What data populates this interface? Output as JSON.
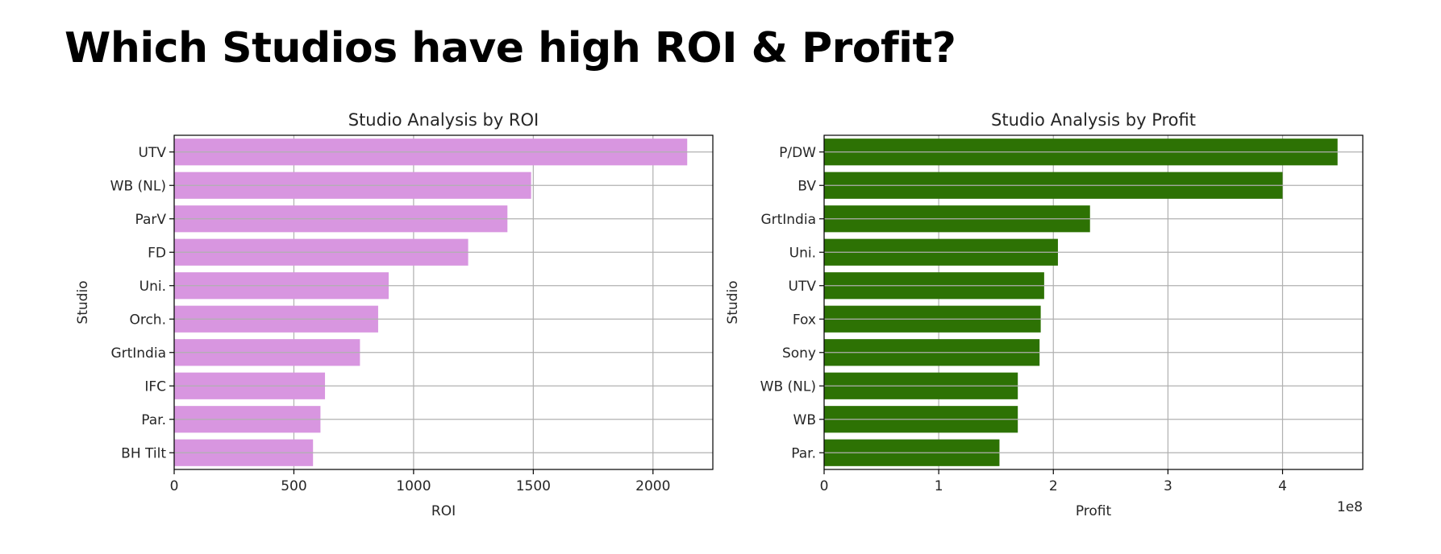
{
  "page": {
    "title": "Which Studios have high ROI & Profit?"
  },
  "chart_data": [
    {
      "type": "bar",
      "orientation": "horizontal",
      "title": "Studio Analysis by ROI",
      "xlabel": "ROI",
      "ylabel": "Studio",
      "categories": [
        "UTV",
        "WB (NL)",
        "ParV",
        "FD",
        "Uni.",
        "Orch.",
        "GrtIndia",
        "IFC",
        "Par.",
        "BH Tilt"
      ],
      "values": [
        2143,
        1491,
        1392,
        1228,
        896,
        852,
        776,
        630,
        611,
        580
      ],
      "xlim": [
        0,
        2250
      ],
      "xticks": [
        0,
        500,
        1000,
        1500,
        2000
      ],
      "xtick_labels": [
        "0",
        "500",
        "1000",
        "1500",
        "2000"
      ],
      "offset_label": "",
      "grid": true,
      "color": "#d896e0"
    },
    {
      "type": "bar",
      "orientation": "horizontal",
      "title": "Studio Analysis by Profit",
      "xlabel": "Profit",
      "ylabel": "Studio",
      "categories": [
        "P/DW",
        "BV",
        "GrtIndia",
        "Uni.",
        "UTV",
        "Fox",
        "Sony",
        "WB (NL)",
        "WB",
        "Par."
      ],
      "values": [
        448000000,
        400000000,
        232000000,
        204000000,
        192000000,
        189000000,
        188000000,
        169000000,
        169000000,
        153000000
      ],
      "xlim": [
        0,
        470000000
      ],
      "xticks": [
        0,
        100000000,
        200000000,
        300000000,
        400000000
      ],
      "xtick_labels": [
        "0",
        "1",
        "2",
        "3",
        "4"
      ],
      "offset_label": "1e8",
      "grid": true,
      "color": "#2d7204"
    }
  ]
}
